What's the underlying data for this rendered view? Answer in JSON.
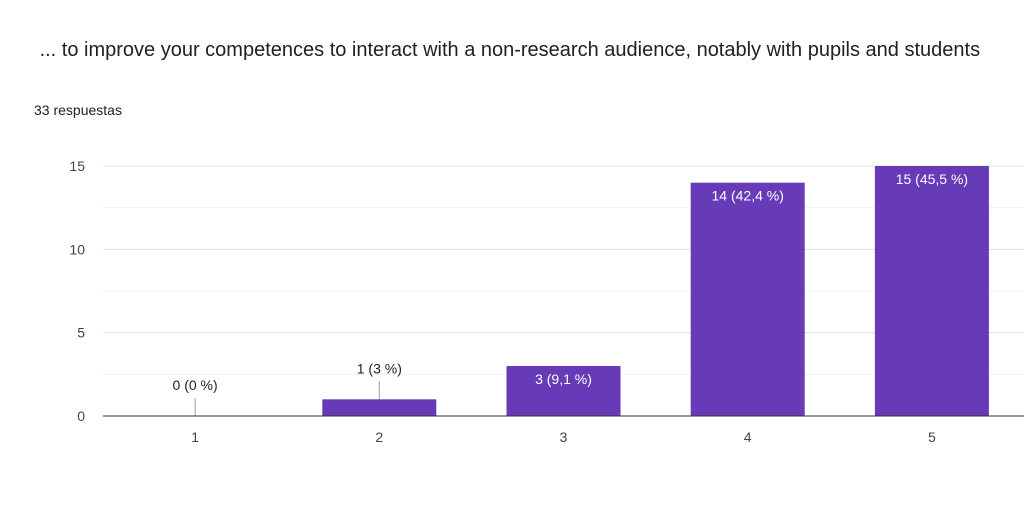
{
  "question": {
    "title": " ... to improve your competences to interact with a non-research audience, notably with pupils and students",
    "responses": "33 respuestas"
  },
  "colors": {
    "bar": "#673ab7",
    "grid": "#e0e0e0",
    "axis": "#333333"
  },
  "chart_data": {
    "type": "bar",
    "categories": [
      "1",
      "2",
      "3",
      "4",
      "5"
    ],
    "values": [
      0,
      1,
      3,
      14,
      15
    ],
    "data_labels": [
      "0 (0 %)",
      "1 (3 %)",
      "3 (9,1 %)",
      "14 (42,4 %)",
      "15 (45,5 %)"
    ],
    "yticks": [
      "0",
      "5",
      "10",
      "15"
    ],
    "ylim": [
      0,
      15
    ],
    "grid": true,
    "legend": "none"
  }
}
